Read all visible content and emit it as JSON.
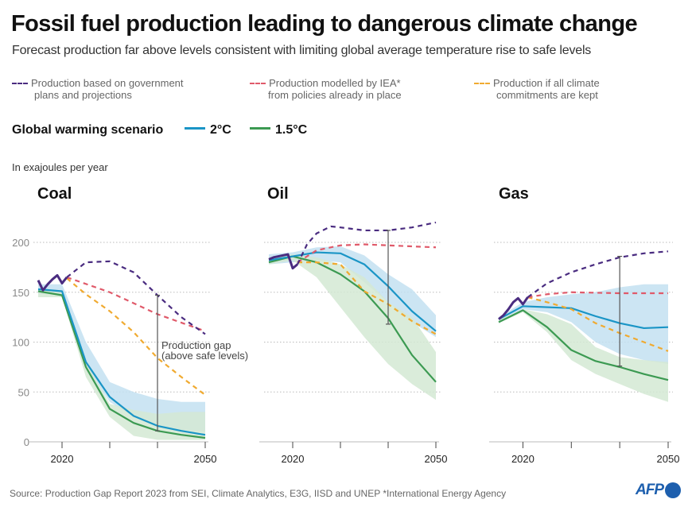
{
  "title": "Fossil fuel production leading to dangerous climate change",
  "subtitle": "Forecast production far above levels consistent with limiting global average temperature rise to safe levels",
  "legend": {
    "gov": {
      "line1": "Production based on government",
      "line2": "plans and projections"
    },
    "iea": {
      "line1": "Production modelled by IEA*",
      "line2": "from policies already in place"
    },
    "commit": {
      "line1": "Production if all climate",
      "line2": "commitments are kept"
    },
    "scenario_label": "Global warming scenario",
    "s2c": "2°C",
    "s15c": "1.5°C"
  },
  "unit": "In exajoules per year",
  "source": "Source: Production Gap Report 2023 from SEI, Climate Analytics, E3G, IISD and UNEP  *International Energy Agency",
  "logo": "AFP",
  "colors": {
    "gov": "#4a2c80",
    "iea": "#e05a6a",
    "commit": "#f0aa30",
    "c2": "#1a95c6",
    "c15": "#3c9a52",
    "band2": "#c3e0f1",
    "band15": "#d3e9d3",
    "gap": "#555555"
  },
  "chart_data": [
    {
      "type": "line",
      "title": "Coal",
      "ylim": [
        0,
        225
      ],
      "yticks": [
        0,
        50,
        100,
        150,
        200
      ],
      "xlim": [
        2015,
        2050
      ],
      "xtick_labels": [
        "2020",
        "2050"
      ],
      "xticks": [
        2020,
        2030,
        2040,
        2050
      ],
      "grid": true,
      "annotation": {
        "line1": "Production gap",
        "line2": "(above safe levels)"
      },
      "gap": {
        "x": 2040,
        "from": 147,
        "to": 11
      },
      "historical": {
        "x": [
          2015,
          2016,
          2017,
          2018,
          2019,
          2020,
          2021
        ],
        "y": [
          162,
          152,
          158,
          163,
          167,
          159,
          165
        ]
      },
      "gov": {
        "x": [
          2021,
          2025,
          2030,
          2035,
          2040,
          2045,
          2050
        ],
        "y": [
          165,
          180,
          181,
          170,
          147,
          125,
          108
        ]
      },
      "iea": {
        "x": [
          2021,
          2030,
          2040,
          2050
        ],
        "y": [
          165,
          150,
          128,
          111
        ]
      },
      "commit": {
        "x": [
          2021,
          2025,
          2030,
          2035,
          2040,
          2045,
          2050
        ],
        "y": [
          164,
          148,
          131,
          110,
          84,
          65,
          47
        ]
      },
      "x": [
        2015,
        2020,
        2025,
        2030,
        2035,
        2040,
        2045,
        2050
      ],
      "c2": [
        153,
        151,
        80,
        45,
        26,
        16,
        11,
        7
      ],
      "c2_band": {
        "high": [
          158,
          158,
          100,
          60,
          50,
          43,
          40,
          40
        ],
        "low": [
          148,
          148,
          75,
          40,
          25,
          17,
          12,
          10
        ]
      },
      "c15": [
        151,
        147,
        75,
        33,
        19,
        11,
        7,
        4
      ],
      "c15_band": {
        "high": [
          152,
          150,
          80,
          38,
          32,
          28,
          30,
          30
        ],
        "low": [
          145,
          145,
          65,
          25,
          6,
          2,
          2,
          2
        ]
      }
    },
    {
      "type": "line",
      "title": "Oil",
      "ylim": [
        0,
        225
      ],
      "yticks": [
        0,
        50,
        100,
        150,
        200
      ],
      "xlim": [
        2015,
        2050
      ],
      "xtick_labels": [
        "2020",
        "2050"
      ],
      "xticks": [
        2020,
        2030,
        2040,
        2050
      ],
      "grid": true,
      "gap": {
        "x": 2040,
        "from": 212,
        "to": 118
      },
      "historical": {
        "x": [
          2015,
          2016,
          2017,
          2018,
          2019,
          2020,
          2021
        ],
        "y": [
          183,
          185,
          186,
          187,
          188,
          174,
          178
        ]
      },
      "gov": {
        "x": [
          2021,
          2023,
          2025,
          2028,
          2030,
          2035,
          2040,
          2045,
          2050
        ],
        "y": [
          178,
          198,
          209,
          216,
          215,
          212,
          212,
          215,
          220
        ]
      },
      "iea": {
        "x": [
          2021,
          2025,
          2030,
          2035,
          2040,
          2045,
          2050
        ],
        "y": [
          180,
          192,
          197,
          198,
          197,
          196,
          195
        ]
      },
      "commit": {
        "x": [
          2021,
          2025,
          2030,
          2035,
          2040,
          2045,
          2050
        ],
        "y": [
          180,
          180,
          178,
          151,
          138,
          121,
          108
        ]
      },
      "x": [
        2015,
        2020,
        2025,
        2030,
        2035,
        2040,
        2045,
        2050
      ],
      "c2": [
        182,
        186,
        190,
        189,
        178,
        156,
        131,
        111
      ],
      "c2_band": {
        "high": [
          188,
          190,
          195,
          196,
          187,
          168,
          153,
          127
        ],
        "low": [
          178,
          180,
          182,
          180,
          160,
          140,
          120,
          105
        ]
      },
      "c15": [
        180,
        186,
        180,
        168,
        151,
        124,
        87,
        60
      ],
      "c15_band": {
        "high": [
          185,
          188,
          185,
          178,
          165,
          140,
          125,
          90
        ],
        "low": [
          178,
          182,
          165,
          135,
          105,
          78,
          58,
          42
        ]
      }
    },
    {
      "type": "line",
      "title": "Gas",
      "ylim": [
        0,
        225
      ],
      "yticks": [
        0,
        50,
        100,
        150,
        200
      ],
      "xlim": [
        2015,
        2050
      ],
      "xtick_labels": [
        "2020",
        "2050"
      ],
      "xticks": [
        2020,
        2030,
        2040,
        2050
      ],
      "grid": true,
      "gap": {
        "x": 2040,
        "from": 186,
        "to": 76
      },
      "historical": {
        "x": [
          2015,
          2016,
          2017,
          2018,
          2019,
          2020,
          2021
        ],
        "y": [
          123,
          127,
          133,
          140,
          144,
          138,
          145
        ]
      },
      "gov": {
        "x": [
          2021,
          2025,
          2030,
          2035,
          2040,
          2045,
          2050
        ],
        "y": [
          145,
          159,
          170,
          178,
          185,
          189,
          191
        ]
      },
      "iea": {
        "x": [
          2021,
          2025,
          2030,
          2040,
          2050
        ],
        "y": [
          145,
          148,
          150,
          149,
          149
        ]
      },
      "commit": {
        "x": [
          2021,
          2025,
          2030,
          2035,
          2040,
          2045,
          2050
        ],
        "y": [
          145,
          140,
          133,
          119,
          109,
          100,
          91
        ]
      },
      "x": [
        2015,
        2020,
        2025,
        2030,
        2035,
        2040,
        2045,
        2050
      ],
      "c2": [
        123,
        136,
        135,
        134,
        126,
        119,
        114,
        115
      ],
      "c2_band": {
        "high": [
          125,
          140,
          145,
          148,
          150,
          155,
          158,
          158
        ],
        "low": [
          121,
          133,
          130,
          120,
          100,
          88,
          82,
          78
        ]
      },
      "c15": [
        120,
        132,
        115,
        92,
        81,
        75,
        68,
        62
      ],
      "c15_band": {
        "high": [
          122,
          133,
          128,
          118,
          95,
          85,
          82,
          80
        ],
        "low": [
          119,
          130,
          110,
          82,
          68,
          58,
          48,
          40
        ]
      }
    }
  ]
}
